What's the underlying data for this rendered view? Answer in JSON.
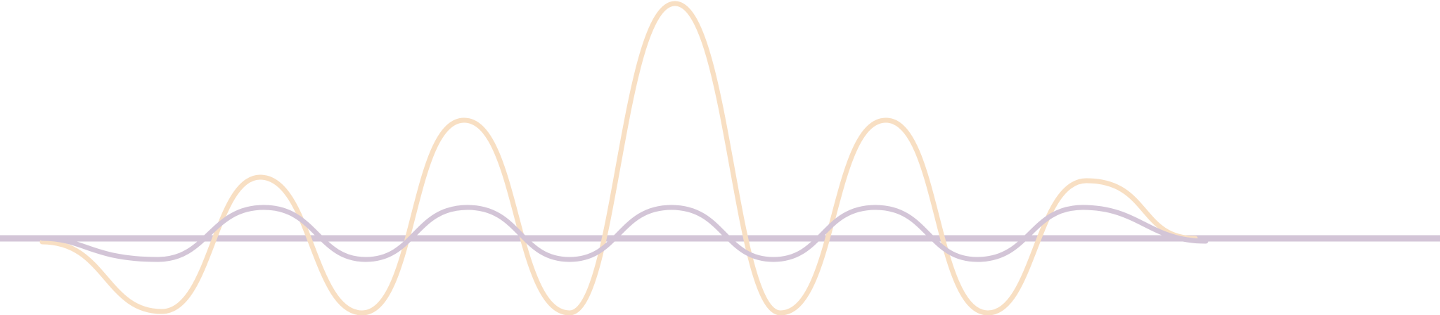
{
  "colors": {
    "background": "#ffffff",
    "peach_wave": "#f8dfc3",
    "lavender_wave": "#d3c5d7",
    "baseline": "#d3c5d7"
  }
}
